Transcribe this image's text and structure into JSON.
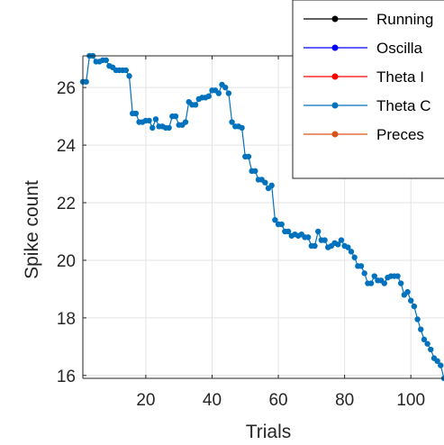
{
  "chart_data": {
    "type": "line",
    "xlabel": "Trials",
    "ylabel": "Spike count",
    "xlim": [
      1,
      110
    ],
    "ylim": [
      15.9,
      27.1
    ],
    "xticks": [
      20,
      40,
      60,
      80,
      100
    ],
    "yticks": [
      16,
      18,
      20,
      22,
      24,
      26
    ],
    "xtick_labels": [
      "20",
      "40",
      "60",
      "80",
      "100"
    ],
    "ytick_labels": [
      "16",
      "18",
      "20",
      "22",
      "24",
      "26"
    ],
    "grid": true,
    "legend_position": "top-right",
    "legend": [
      {
        "name": "Running",
        "color": "#000000"
      },
      {
        "name": "Oscilla",
        "color": "#0000ff"
      },
      {
        "name": "Theta I",
        "color": "#ff0000"
      },
      {
        "name": "Theta C",
        "color": "#0072bd"
      },
      {
        "name": "Preces",
        "color": "#d95319"
      }
    ],
    "series": [
      {
        "name": "Theta C",
        "color": "#0072bd",
        "x": [
          1,
          2,
          3,
          4,
          5,
          6,
          7,
          8,
          9,
          10,
          11,
          12,
          13,
          14,
          15,
          16,
          17,
          18,
          19,
          20,
          21,
          22,
          23,
          24,
          25,
          26,
          27,
          28,
          29,
          30,
          31,
          32,
          33,
          34,
          35,
          36,
          37,
          38,
          39,
          40,
          41,
          42,
          43,
          44,
          45,
          46,
          47,
          48,
          49,
          50,
          51,
          52,
          53,
          54,
          55,
          56,
          57,
          58,
          59,
          60,
          61,
          62,
          63,
          64,
          65,
          66,
          67,
          68,
          69,
          70,
          71,
          72,
          73,
          74,
          75,
          76,
          77,
          78,
          79,
          80,
          81,
          82,
          83,
          84,
          85,
          86,
          87,
          88,
          89,
          90,
          91,
          92,
          93,
          94,
          95,
          96,
          97,
          98,
          99,
          100,
          101,
          102,
          103,
          104,
          105,
          106,
          107,
          108,
          109,
          110
        ],
        "y": [
          26.2,
          26.2,
          27.1,
          27.1,
          26.9,
          26.9,
          26.95,
          26.95,
          26.75,
          26.7,
          26.6,
          26.6,
          26.6,
          26.6,
          26.4,
          25.1,
          25.1,
          24.8,
          24.8,
          24.85,
          24.85,
          24.6,
          24.9,
          24.65,
          24.65,
          24.6,
          24.6,
          25.0,
          25.0,
          24.7,
          24.7,
          24.8,
          25.5,
          25.4,
          25.4,
          25.6,
          25.65,
          25.65,
          25.7,
          25.9,
          25.9,
          25.8,
          26.1,
          26.0,
          25.8,
          24.8,
          24.65,
          24.65,
          24.6,
          23.6,
          23.6,
          23.1,
          23.1,
          22.8,
          22.8,
          22.7,
          22.5,
          22.6,
          21.4,
          21.25,
          21.25,
          21.0,
          21.0,
          20.85,
          20.9,
          20.85,
          20.9,
          20.8,
          20.8,
          20.5,
          20.5,
          21.0,
          20.7,
          20.7,
          20.45,
          20.5,
          20.6,
          20.55,
          20.7,
          20.5,
          20.45,
          20.3,
          20.1,
          19.8,
          19.8,
          19.55,
          19.2,
          19.2,
          19.45,
          19.3,
          19.3,
          19.2,
          19.4,
          19.45,
          19.45,
          19.45,
          19.2,
          18.8,
          18.9,
          18.6,
          18.4,
          17.95,
          17.6,
          17.25,
          17.1,
          16.9,
          16.6,
          16.5,
          16.35,
          15.9
        ]
      }
    ]
  }
}
